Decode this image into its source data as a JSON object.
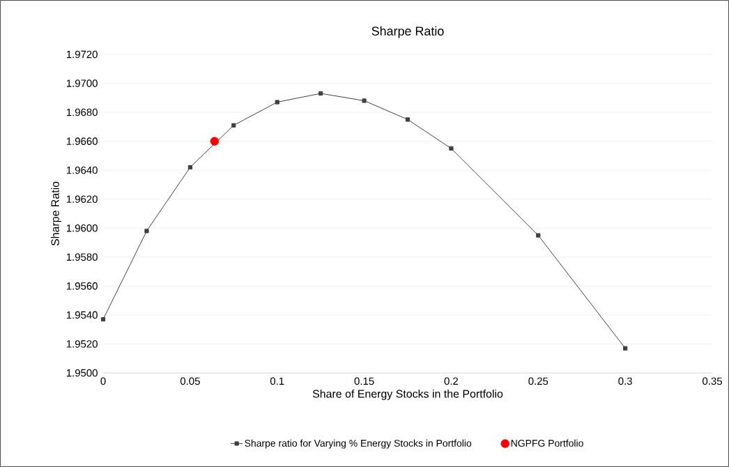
{
  "chart_data": {
    "type": "line",
    "title": "Sharpe Ratio",
    "xlabel": "Share of Energy Stocks in the Portfolio",
    "ylabel": "Sharpe Ratio",
    "xlim": [
      0,
      0.35
    ],
    "xticks": [
      0,
      0.05,
      0.1,
      0.15,
      0.2,
      0.25,
      0.3,
      0.35
    ],
    "ylim": [
      1.95,
      1.972
    ],
    "yticks": [
      {
        "value": 1.95,
        "label": "1.9500"
      },
      {
        "value": 1.952,
        "label": "1.9520"
      },
      {
        "value": 1.954,
        "label": "1.9540"
      },
      {
        "value": 1.956,
        "label": "1.9560"
      },
      {
        "value": 1.958,
        "label": "1.9580"
      },
      {
        "value": 1.96,
        "label": "1.9600"
      },
      {
        "value": 1.962,
        "label": "1.9620"
      },
      {
        "value": 1.964,
        "label": "1.9640"
      },
      {
        "value": 1.966,
        "label": "1.9660"
      },
      {
        "value": 1.968,
        "label": "1.9680"
      },
      {
        "value": 1.97,
        "label": "1.9700"
      },
      {
        "value": 1.972,
        "label": "1.9720"
      }
    ],
    "grid": "y",
    "legend": "bottom",
    "series": [
      {
        "name": "Sharpe ratio for Varying % Energy Stocks in Portfolio",
        "color": "#404040",
        "marker": "square",
        "x": [
          0,
          0.025,
          0.05,
          0.075,
          0.1,
          0.125,
          0.15,
          0.175,
          0.2,
          0.25,
          0.3
        ],
        "values": [
          1.9537,
          1.9598,
          1.9642,
          1.9671,
          1.9687,
          1.9693,
          1.9688,
          1.9675,
          1.9655,
          1.9595,
          1.9517
        ]
      },
      {
        "name": "NGPFG Portfolio",
        "type": "scatter",
        "color": "#ff0000",
        "marker": "circle",
        "x": [
          0.064
        ],
        "values": [
          1.966
        ]
      }
    ]
  }
}
